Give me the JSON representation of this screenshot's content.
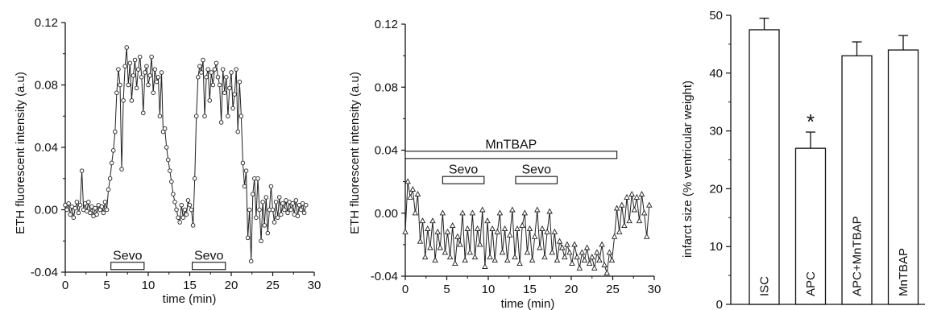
{
  "chart_data": [
    {
      "type": "line",
      "xlabel": "time (min)",
      "ylabel": "ETH fluorescent intensity (a.u)",
      "xlim": [
        0,
        30
      ],
      "ylim": [
        -0.04,
        0.12
      ],
      "xticks": [
        "0",
        "5",
        "10",
        "15",
        "20",
        "25",
        "30"
      ],
      "yticks": [
        "-0.04",
        "0.00",
        "0.04",
        "0.08",
        "0.12"
      ],
      "marker": "circle",
      "annotations": [
        {
          "label": "Sevo",
          "x_start": 5.5,
          "x_end": 9.5,
          "y": -0.036
        },
        {
          "label": "Sevo",
          "x_start": 15.3,
          "x_end": 19.3,
          "y": -0.036
        }
      ],
      "series": [
        {
          "values": [
            [
              0.0,
              0.003
            ],
            [
              0.2,
              0.0
            ],
            [
              0.4,
              0.004
            ],
            [
              0.6,
              -0.003
            ],
            [
              0.8,
              0.002
            ],
            [
              1.0,
              -0.005
            ],
            [
              1.2,
              0.001
            ],
            [
              1.4,
              0.005
            ],
            [
              1.6,
              -0.002
            ],
            [
              1.8,
              0.003
            ],
            [
              2.0,
              0.025
            ],
            [
              2.2,
              0.0
            ],
            [
              2.4,
              0.004
            ],
            [
              2.6,
              -0.001
            ],
            [
              2.8,
              0.005
            ],
            [
              3.0,
              -0.002
            ],
            [
              3.2,
              0.002
            ],
            [
              3.4,
              -0.004
            ],
            [
              3.6,
              0.001
            ],
            [
              3.8,
              -0.003
            ],
            [
              4.0,
              0.003
            ],
            [
              4.2,
              0.0
            ],
            [
              4.4,
              0.002
            ],
            [
              4.6,
              -0.002
            ],
            [
              4.8,
              0.005
            ],
            [
              5.0,
              0.0
            ],
            [
              5.2,
              0.013
            ],
            [
              5.4,
              0.02
            ],
            [
              5.6,
              0.03
            ],
            [
              5.8,
              0.038
            ],
            [
              6.0,
              0.05
            ],
            [
              6.2,
              0.075
            ],
            [
              6.4,
              0.09
            ],
            [
              6.6,
              0.08
            ],
            [
              6.8,
              0.026
            ],
            [
              7.0,
              0.07
            ],
            [
              7.2,
              0.092
            ],
            [
              7.4,
              0.104
            ],
            [
              7.6,
              0.08
            ],
            [
              7.8,
              0.094
            ],
            [
              8.0,
              0.07
            ],
            [
              8.2,
              0.086
            ],
            [
              8.4,
              0.096
            ],
            [
              8.6,
              0.078
            ],
            [
              8.8,
              0.09
            ],
            [
              9.0,
              0.098
            ],
            [
              9.2,
              0.085
            ],
            [
              9.4,
              0.062
            ],
            [
              9.6,
              0.088
            ],
            [
              9.8,
              0.092
            ],
            [
              10.0,
              0.08
            ],
            [
              10.2,
              0.086
            ],
            [
              10.4,
              0.098
            ],
            [
              10.6,
              0.075
            ],
            [
              10.8,
              0.09
            ],
            [
              11.0,
              0.082
            ],
            [
              11.2,
              0.085
            ],
            [
              11.4,
              0.06
            ],
            [
              11.6,
              0.088
            ],
            [
              11.8,
              0.05
            ],
            [
              12.0,
              0.052
            ],
            [
              12.2,
              0.04
            ],
            [
              12.4,
              0.032
            ],
            [
              12.6,
              0.025
            ],
            [
              12.8,
              0.018
            ],
            [
              13.0,
              0.01
            ],
            [
              13.2,
              0.005
            ],
            [
              13.4,
              0.0
            ],
            [
              13.6,
              -0.005
            ],
            [
              13.8,
              -0.008
            ],
            [
              14.0,
              0.003
            ],
            [
              14.2,
              -0.005
            ],
            [
              14.4,
              0.0
            ],
            [
              14.6,
              -0.003
            ],
            [
              14.8,
              0.006
            ],
            [
              15.0,
              0.003
            ],
            [
              15.2,
              0.0
            ],
            [
              15.4,
              -0.01
            ],
            [
              15.6,
              0.02
            ],
            [
              15.8,
              0.06
            ],
            [
              16.0,
              0.085
            ],
            [
              16.2,
              0.092
            ],
            [
              16.4,
              0.088
            ],
            [
              16.6,
              0.096
            ],
            [
              16.8,
              0.06
            ],
            [
              17.0,
              0.085
            ],
            [
              17.2,
              0.09
            ],
            [
              17.4,
              0.07
            ],
            [
              17.6,
              0.088
            ],
            [
              17.8,
              0.08
            ],
            [
              18.0,
              0.09
            ],
            [
              18.2,
              0.094
            ],
            [
              18.4,
              0.085
            ],
            [
              18.6,
              0.08
            ],
            [
              18.8,
              0.056
            ],
            [
              19.0,
              0.09
            ],
            [
              19.2,
              0.075
            ],
            [
              19.4,
              0.085
            ],
            [
              19.6,
              0.06
            ],
            [
              19.8,
              0.078
            ],
            [
              20.0,
              0.088
            ],
            [
              20.2,
              0.065
            ],
            [
              20.4,
              0.074
            ],
            [
              20.6,
              0.09
            ],
            [
              20.8,
              0.05
            ],
            [
              21.0,
              0.082
            ],
            [
              21.2,
              0.06
            ],
            [
              21.4,
              0.03
            ],
            [
              21.6,
              0.015
            ],
            [
              21.8,
              0.025
            ],
            [
              22.0,
              -0.018
            ],
            [
              22.2,
              0.0
            ],
            [
              22.4,
              -0.033
            ],
            [
              22.6,
              0.01
            ],
            [
              22.8,
              0.02
            ],
            [
              23.0,
              -0.005
            ],
            [
              23.2,
              0.02
            ],
            [
              23.4,
              0.0
            ],
            [
              23.6,
              -0.02
            ],
            [
              23.8,
              0.005
            ],
            [
              24.0,
              -0.01
            ],
            [
              24.2,
              0.008
            ],
            [
              24.4,
              -0.015
            ],
            [
              24.6,
              0.0
            ],
            [
              24.8,
              0.015
            ],
            [
              25.0,
              0.0
            ],
            [
              25.2,
              -0.008
            ],
            [
              25.4,
              0.005
            ],
            [
              25.6,
              -0.005
            ],
            [
              25.8,
              0.008
            ],
            [
              26.0,
              -0.003
            ],
            [
              26.2,
              0.004
            ],
            [
              26.4,
              0.0
            ],
            [
              26.6,
              0.006
            ],
            [
              26.8,
              -0.002
            ],
            [
              27.0,
              0.005
            ],
            [
              27.2,
              0.0
            ],
            [
              27.4,
              0.004
            ],
            [
              27.6,
              -0.003
            ],
            [
              27.8,
              0.006
            ],
            [
              28.0,
              -0.004
            ],
            [
              28.2,
              0.003
            ],
            [
              28.4,
              0.0
            ],
            [
              28.6,
              0.004
            ],
            [
              28.8,
              -0.002
            ],
            [
              29.0,
              0.003
            ]
          ]
        }
      ]
    },
    {
      "type": "line",
      "xlabel": "time (min)",
      "ylabel": "ETH fluorescent intensity (a.u)",
      "xlim": [
        0,
        30
      ],
      "ylim": [
        -0.04,
        0.12
      ],
      "xticks": [
        "0",
        "5",
        "10",
        "15",
        "20",
        "25",
        "30"
      ],
      "yticks": [
        "-0.04",
        "0.00",
        "0.04",
        "0.08",
        "0.12"
      ],
      "marker": "triangle",
      "annotations": [
        {
          "label": "MnTBAP",
          "x_start": 0.0,
          "x_end": 25.5,
          "y": 0.037
        },
        {
          "label": "Sevo",
          "x_start": 4.5,
          "x_end": 9.5,
          "y": 0.021
        },
        {
          "label": "Sevo",
          "x_start": 13.3,
          "x_end": 18.3,
          "y": 0.021
        }
      ],
      "series": [
        {
          "values": [
            [
              0.0,
              -0.012
            ],
            [
              0.3,
              0.02
            ],
            [
              0.6,
              0.01
            ],
            [
              0.9,
              0.015
            ],
            [
              1.2,
              0.0
            ],
            [
              1.5,
              0.012
            ],
            [
              1.8,
              -0.018
            ],
            [
              2.1,
              -0.005
            ],
            [
              2.4,
              -0.028
            ],
            [
              2.7,
              -0.01
            ],
            [
              3.0,
              -0.022
            ],
            [
              3.3,
              -0.005
            ],
            [
              3.6,
              -0.03
            ],
            [
              3.9,
              -0.012
            ],
            [
              4.2,
              -0.022
            ],
            [
              4.5,
              0.0
            ],
            [
              4.8,
              -0.025
            ],
            [
              5.1,
              -0.012
            ],
            [
              5.4,
              -0.028
            ],
            [
              5.7,
              -0.008
            ],
            [
              6.0,
              -0.032
            ],
            [
              6.3,
              -0.015
            ],
            [
              6.6,
              -0.02
            ],
            [
              6.9,
              0.0
            ],
            [
              7.2,
              -0.03
            ],
            [
              7.5,
              -0.01
            ],
            [
              7.8,
              -0.025
            ],
            [
              8.1,
              0.0
            ],
            [
              8.4,
              -0.028
            ],
            [
              8.7,
              -0.01
            ],
            [
              9.0,
              -0.02
            ],
            [
              9.3,
              0.002
            ],
            [
              9.6,
              -0.034
            ],
            [
              9.9,
              -0.005
            ],
            [
              10.2,
              -0.028
            ],
            [
              10.5,
              -0.01
            ],
            [
              10.8,
              -0.03
            ],
            [
              11.1,
              -0.012
            ],
            [
              11.4,
              0.0
            ],
            [
              11.7,
              -0.025
            ],
            [
              12.0,
              -0.01
            ],
            [
              12.3,
              -0.03
            ],
            [
              12.6,
              -0.014
            ],
            [
              12.9,
              0.002
            ],
            [
              13.2,
              -0.028
            ],
            [
              13.5,
              -0.01
            ],
            [
              13.8,
              -0.032
            ],
            [
              14.1,
              -0.008
            ],
            [
              14.4,
              0.0
            ],
            [
              14.7,
              -0.025
            ],
            [
              15.0,
              -0.01
            ],
            [
              15.3,
              -0.03
            ],
            [
              15.6,
              -0.015
            ],
            [
              15.9,
              0.002
            ],
            [
              16.2,
              -0.022
            ],
            [
              16.5,
              -0.01
            ],
            [
              16.8,
              -0.028
            ],
            [
              17.1,
              -0.012
            ],
            [
              17.4,
              0.001
            ],
            [
              17.7,
              -0.025
            ],
            [
              18.0,
              -0.012
            ],
            [
              18.3,
              -0.03
            ],
            [
              18.6,
              -0.018
            ],
            [
              18.9,
              -0.022
            ],
            [
              19.2,
              -0.028
            ],
            [
              19.5,
              -0.02
            ],
            [
              19.8,
              -0.025
            ],
            [
              20.1,
              -0.032
            ],
            [
              20.4,
              -0.02
            ],
            [
              20.7,
              -0.028
            ],
            [
              21.0,
              -0.035
            ],
            [
              21.3,
              -0.025
            ],
            [
              21.6,
              -0.03
            ],
            [
              21.9,
              -0.022
            ],
            [
              22.2,
              -0.032
            ],
            [
              22.5,
              -0.028
            ],
            [
              22.8,
              -0.035
            ],
            [
              23.1,
              -0.025
            ],
            [
              23.4,
              -0.03
            ],
            [
              23.7,
              -0.02
            ],
            [
              24.0,
              -0.033
            ],
            [
              24.3,
              -0.038
            ],
            [
              24.6,
              -0.025
            ],
            [
              24.9,
              -0.03
            ],
            [
              25.2,
              -0.015
            ],
            [
              25.5,
              0.003
            ],
            [
              25.8,
              -0.012
            ],
            [
              26.1,
              0.005
            ],
            [
              26.4,
              -0.008
            ],
            [
              26.7,
              0.01
            ],
            [
              27.0,
              -0.005
            ],
            [
              27.3,
              0.012
            ],
            [
              27.6,
              0.002
            ],
            [
              27.9,
              0.01
            ],
            [
              28.2,
              -0.005
            ],
            [
              28.5,
              0.012
            ],
            [
              28.8,
              0.0
            ],
            [
              29.1,
              -0.015
            ],
            [
              29.4,
              0.005
            ]
          ]
        }
      ]
    },
    {
      "type": "bar",
      "ylabel": "infarct size (% ventricular weight)",
      "ylim": [
        0,
        50
      ],
      "yticks": [
        "0",
        "10",
        "20",
        "30",
        "40",
        "50"
      ],
      "categories": [
        "ISC",
        "APC",
        "APC+MnTBAP",
        "MnTBAP"
      ],
      "values": [
        47.5,
        27,
        43,
        44
      ],
      "errors": [
        2,
        2.8,
        2.4,
        2.5
      ],
      "annotations": [
        {
          "label": "*",
          "category": "APC"
        }
      ]
    }
  ]
}
